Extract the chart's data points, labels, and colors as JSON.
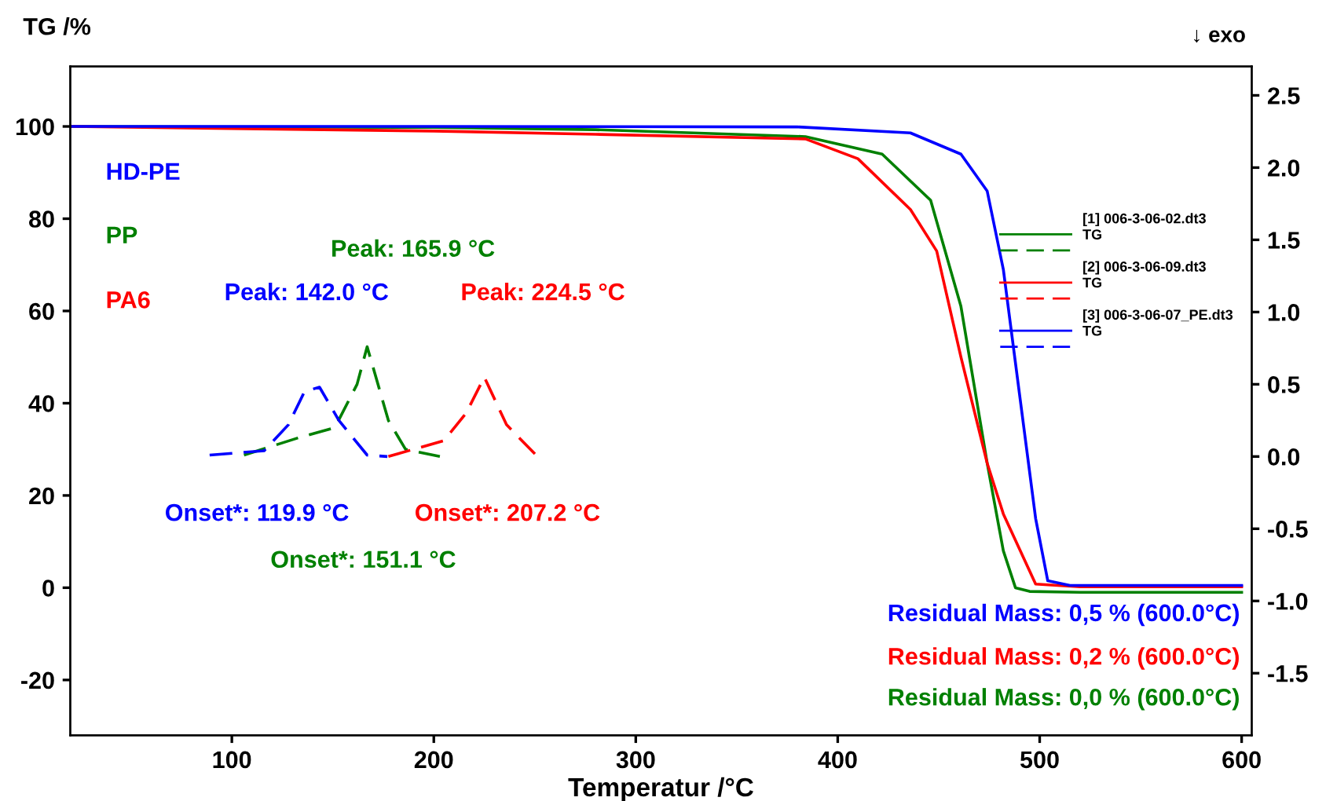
{
  "chart_data": {
    "type": "line",
    "xlabel": "Temperatur /°C",
    "ylabel": "TG /%",
    "xlim": [
      20,
      605
    ],
    "xticks": [
      100,
      200,
      300,
      400,
      500,
      600
    ],
    "ylim": [
      -32,
      113
    ],
    "yticks": [
      -20,
      0,
      20,
      40,
      60,
      80,
      100
    ],
    "y2lim": [
      -1.93,
      2.7
    ],
    "y2ticks": [
      -1.5,
      {
        "value": -1,
        "label": "-1.0"
      },
      -0.5,
      {
        "value": 0,
        "label": "0.0"
      },
      0.5,
      {
        "value": 1,
        "label": "1.0"
      },
      1.5,
      {
        "value": 2,
        "label": "2.0"
      },
      2.5
    ],
    "grid": false,
    "legend": "top right",
    "marker": "none",
    "series": [
      {
        "name": "TG",
        "color": "#008000",
        "line_style": "solid",
        "x": [
          21,
          200,
          280,
          384,
          422,
          446,
          461,
          474,
          482,
          488,
          495,
          520,
          600
        ],
        "values": [
          100,
          99.8,
          99.3,
          97.8,
          94,
          84,
          61,
          27,
          8,
          0,
          -0.8,
          -1,
          -1
        ]
      },
      {
        "color": "#008000",
        "line_style": "dashed",
        "axis": "y2",
        "x": [
          106,
          133,
          151,
          162,
          167,
          177.5,
          186,
          203
        ],
        "values": [
          0.01,
          0.13,
          0.2,
          0.5,
          0.76,
          0.25,
          0.05,
          0.0
        ]
      },
      {
        "name": "TG",
        "color": "#ff0000",
        "line_style": "solid",
        "x": [
          21,
          200,
          280,
          384,
          410,
          436,
          449,
          461,
          474,
          482,
          498,
          520,
          600
        ],
        "values": [
          100,
          99,
          98.3,
          97.3,
          93,
          82,
          73,
          50,
          27,
          16,
          0.8,
          0.2,
          0.2
        ]
      },
      {
        "color": "#ff0000",
        "line_style": "dashed",
        "axis": "y2",
        "x": [
          177.5,
          205,
          216,
          225,
          236,
          252
        ],
        "values": [
          0.0,
          0.11,
          0.3,
          0.55,
          0.22,
          -0.01
        ]
      },
      {
        "name": "TG",
        "color": "#0000ff",
        "line_style": "solid",
        "x": [
          21,
          200,
          380,
          436,
          461,
          474,
          482,
          490,
          498,
          504,
          515,
          600
        ],
        "values": [
          100,
          100,
          99.9,
          98.6,
          94,
          86,
          69,
          42,
          15,
          1.5,
          0.5,
          0.5
        ]
      },
      {
        "color": "#0000ff",
        "line_style": "dashed",
        "axis": "y2",
        "x": [
          89,
          116,
          128,
          136,
          143.4,
          153,
          167,
          177
        ],
        "values": [
          0.01,
          0.04,
          0.22,
          0.45,
          0.48,
          0.25,
          0.01,
          0.0
        ]
      }
    ],
    "annotations": [
      "[1] 006-3-06-02.dt3",
      "[2] 006-3-06-09.dt3",
      "[3] 006-3-06-07_PE.dt3",
      "↓ exo",
      "HD-PE",
      "PP",
      "PA6",
      "Peak: 142.0 °C",
      "Peak: 165.9 °C",
      "Peak: 224.5 °C",
      "Onset*: 119.9 °C",
      "Onset*: 207.2 °C",
      "Onset*: 151.1 °C",
      "Residual Mass: 0,5 % (600.0°C)",
      "Residual Mass: 0,2 % (600.0°C)",
      "Residual Mass: 0,0 % (600.0°C)"
    ]
  }
}
